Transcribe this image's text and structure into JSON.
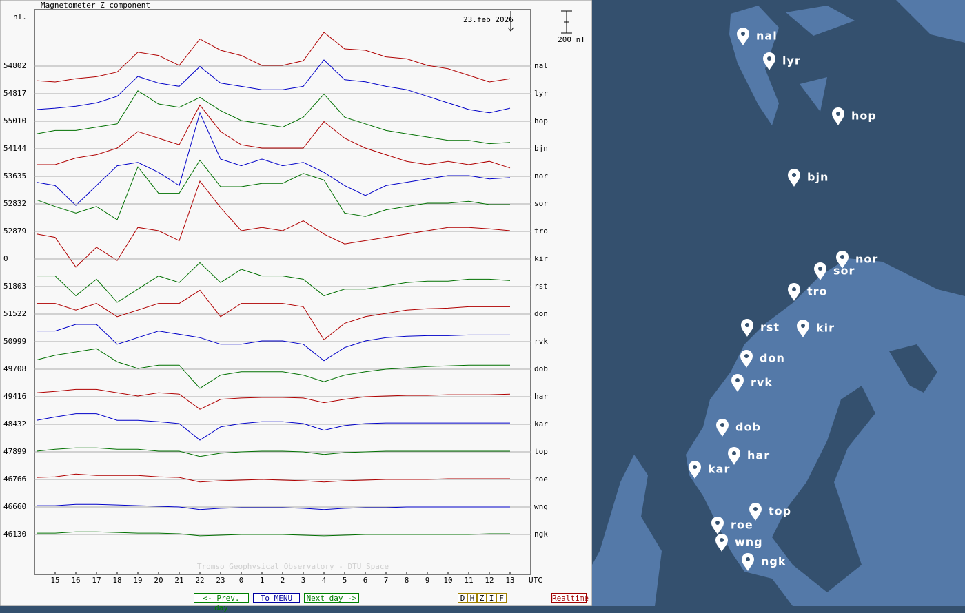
{
  "chart_data": {
    "type": "line",
    "title": "Magnetometer Z component",
    "ylabel": "nT.",
    "xlabel": "UTC",
    "date": "23.feb 2026",
    "footer": "Tromso Geophysical Observatory - DTU Space",
    "scale_bar": {
      "value": 200,
      "label": "200 nT"
    },
    "grid": true,
    "xlim": [
      14,
      38
    ],
    "xticks": [
      15,
      16,
      17,
      18,
      19,
      20,
      21,
      22,
      23,
      {
        "value": 24,
        "label": "0"
      },
      {
        "value": 25,
        "label": "1"
      },
      {
        "value": 26,
        "label": "2"
      },
      {
        "value": 27,
        "label": "3"
      },
      {
        "value": 28,
        "label": "4"
      },
      {
        "value": 29,
        "label": "5"
      },
      {
        "value": 30,
        "label": "6"
      },
      {
        "value": 31,
        "label": "7"
      },
      {
        "value": 32,
        "label": "8"
      },
      {
        "value": 33,
        "label": "9"
      },
      {
        "value": 34,
        "label": "10"
      },
      {
        "value": 35,
        "label": "11"
      },
      {
        "value": 36,
        "label": "12"
      },
      {
        "value": 37,
        "label": "13"
      }
    ],
    "x": [
      14.1,
      15,
      16,
      17,
      18,
      19,
      20,
      21,
      22,
      23,
      24,
      25,
      26,
      27,
      28,
      29,
      30,
      31,
      32,
      33,
      34,
      35,
      36,
      37
    ],
    "series": [
      {
        "name": "nal",
        "baseline": 54802,
        "color": "#b00000",
        "values": [
          -132,
          -144,
          -114,
          -96,
          -54,
          126,
          96,
          6,
          246,
          144,
          96,
          6,
          6,
          48,
          306,
          156,
          144,
          84,
          66,
          6,
          -24,
          -84,
          -144,
          -114
        ]
      },
      {
        "name": "lyr",
        "baseline": 54817,
        "color": "#0000c8",
        "values": [
          -144,
          -132,
          -114,
          -84,
          -24,
          156,
          96,
          66,
          246,
          96,
          66,
          36,
          36,
          66,
          306,
          126,
          108,
          66,
          36,
          -24,
          -84,
          -144,
          -174,
          -132
        ]
      },
      {
        "name": "hop",
        "baseline": 55010,
        "color": "#007000",
        "values": [
          -114,
          -84,
          -84,
          -54,
          -24,
          276,
          156,
          126,
          216,
          96,
          6,
          -24,
          -54,
          36,
          246,
          36,
          -24,
          -84,
          -114,
          -144,
          -174,
          -174,
          -204,
          -192
        ]
      },
      {
        "name": "bjn",
        "baseline": 54144,
        "color": "#b00000",
        "values": [
          -144,
          -144,
          -84,
          -54,
          6,
          156,
          96,
          36,
          396,
          156,
          36,
          6,
          6,
          6,
          246,
          96,
          6,
          -54,
          -114,
          -144,
          -114,
          -144,
          -114,
          -174
        ]
      },
      {
        "name": "nor",
        "baseline": 53635,
        "color": "#0000c8",
        "values": [
          -54,
          -84,
          -264,
          -84,
          96,
          126,
          36,
          -84,
          576,
          156,
          96,
          156,
          96,
          126,
          36,
          -84,
          -174,
          -84,
          -54,
          -24,
          6,
          6,
          -24,
          -12
        ]
      },
      {
        "name": "sor",
        "baseline": 52832,
        "color": "#007000",
        "values": [
          36,
          -24,
          -84,
          -24,
          -144,
          336,
          96,
          96,
          396,
          156,
          156,
          186,
          186,
          276,
          216,
          -84,
          -114,
          -54,
          -24,
          6,
          6,
          24,
          -6,
          -6
        ]
      },
      {
        "name": "tro",
        "baseline": 52879,
        "color": "#b00000",
        "values": [
          -24,
          -54,
          -324,
          -144,
          -264,
          36,
          6,
          -84,
          456,
          216,
          6,
          36,
          6,
          96,
          -24,
          -114,
          -84,
          -54,
          -24,
          6,
          36,
          36,
          24,
          6
        ]
      },
      {
        "name": "kir",
        "baseline": 0,
        "color": "#0000c8",
        "values": [
          null,
          null,
          null,
          null,
          null,
          null,
          null,
          null,
          null,
          null,
          null,
          null,
          null,
          null,
          null,
          null,
          null,
          null,
          null,
          null,
          null,
          null,
          null,
          null
        ]
      },
      {
        "name": "rst",
        "baseline": 51803,
        "color": "#007000",
        "values": [
          96,
          96,
          -84,
          66,
          -144,
          -24,
          96,
          36,
          216,
          36,
          156,
          96,
          96,
          66,
          -84,
          -24,
          -24,
          6,
          36,
          48,
          48,
          66,
          66,
          54
        ]
      },
      {
        "name": "don",
        "baseline": 51522,
        "color": "#b00000",
        "values": [
          96,
          96,
          36,
          96,
          -24,
          36,
          96,
          96,
          216,
          -24,
          96,
          96,
          96,
          66,
          -234,
          -84,
          -24,
          6,
          36,
          48,
          54,
          66,
          66,
          66
        ]
      },
      {
        "name": "rvk",
        "baseline": 50999,
        "color": "#0000c8",
        "values": [
          96,
          96,
          156,
          156,
          -24,
          36,
          96,
          66,
          36,
          -24,
          -24,
          6,
          6,
          -24,
          -174,
          -54,
          6,
          36,
          48,
          54,
          54,
          60,
          60,
          60
        ]
      },
      {
        "name": "dob",
        "baseline": 49708,
        "color": "#007000",
        "values": [
          84,
          126,
          156,
          186,
          66,
          6,
          36,
          36,
          -174,
          -54,
          -24,
          -24,
          -24,
          -54,
          -114,
          -54,
          -24,
          0,
          12,
          24,
          30,
          36,
          36,
          36
        ]
      },
      {
        "name": "har",
        "baseline": 49416,
        "color": "#b00000",
        "values": [
          36,
          48,
          66,
          66,
          36,
          6,
          36,
          24,
          -114,
          -24,
          -12,
          -6,
          -6,
          -12,
          -54,
          -24,
          0,
          6,
          12,
          12,
          18,
          18,
          18,
          24
        ]
      },
      {
        "name": "kar",
        "baseline": 48432,
        "color": "#0000c8",
        "values": [
          36,
          66,
          96,
          96,
          36,
          36,
          24,
          6,
          -144,
          -24,
          6,
          24,
          24,
          6,
          -54,
          -12,
          6,
          12,
          12,
          12,
          12,
          12,
          12,
          12
        ]
      },
      {
        "name": "top",
        "baseline": 47899,
        "color": "#007000",
        "values": [
          6,
          24,
          36,
          36,
          24,
          24,
          6,
          6,
          -42,
          -12,
          0,
          6,
          6,
          0,
          -24,
          -6,
          0,
          6,
          6,
          6,
          6,
          6,
          6,
          6
        ]
      },
      {
        "name": "roe",
        "baseline": 46766,
        "color": "#b00000",
        "values": [
          18,
          24,
          48,
          36,
          36,
          36,
          24,
          18,
          -24,
          -12,
          -6,
          0,
          -6,
          -12,
          -24,
          -12,
          -6,
          0,
          0,
          0,
          6,
          6,
          6,
          6
        ]
      },
      {
        "name": "wng",
        "baseline": 46660,
        "color": "#0000c8",
        "values": [
          12,
          12,
          24,
          24,
          18,
          12,
          6,
          0,
          -24,
          -12,
          -6,
          -6,
          -6,
          -12,
          -24,
          -12,
          -6,
          -6,
          0,
          0,
          0,
          0,
          0,
          0
        ]
      },
      {
        "name": "ngk",
        "baseline": 46130,
        "color": "#007000",
        "values": [
          12,
          12,
          24,
          24,
          18,
          12,
          12,
          6,
          -12,
          -6,
          0,
          0,
          0,
          -6,
          -12,
          -6,
          0,
          0,
          0,
          0,
          0,
          0,
          6,
          6
        ]
      }
    ]
  },
  "buttons": [
    "<- Prev. day",
    "To MENU",
    "Next day ->",
    "D",
    "H",
    "Z",
    "I",
    "F",
    "Realtime"
  ],
  "map": {
    "markers": [
      "nal",
      "lyr",
      "hop",
      "bjn",
      "nor",
      "sor",
      "tro",
      "rst",
      "kir",
      "don",
      "rvk",
      "dob",
      "har",
      "kar",
      "top",
      "roe",
      "wng",
      "ngk"
    ]
  }
}
